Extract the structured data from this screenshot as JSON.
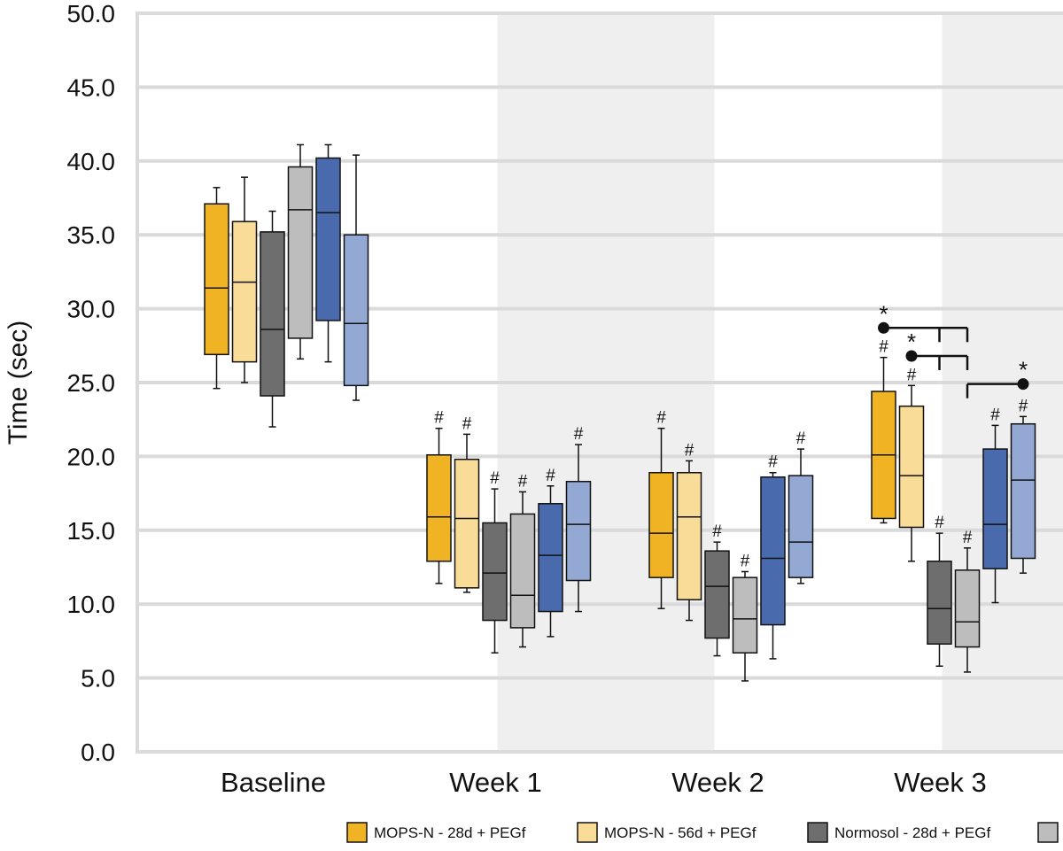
{
  "chart_data": {
    "type": "box",
    "ylabel": "Time (sec)",
    "ylim": [
      0,
      50
    ],
    "yticks": [
      "0.0",
      "5.0",
      "10.0",
      "15.0",
      "20.0",
      "25.0",
      "30.0",
      "35.0",
      "40.0",
      "45.0",
      "50.0"
    ],
    "grid": true,
    "legend_position": "bottom",
    "categories": [
      "Baseline",
      "Week 1",
      "Week 2",
      "Week 3"
    ],
    "shaded_categories": [
      "Week 1",
      "Week 3"
    ],
    "series": [
      {
        "name": "MOPS-N - 28d + PEGf",
        "color": "#F0B323",
        "boxes": [
          {
            "whisker_low": 24.6,
            "q1": 26.9,
            "median": 31.4,
            "q3": 37.1,
            "whisker_high": 38.2
          },
          {
            "whisker_low": 11.4,
            "q1": 12.9,
            "median": 15.9,
            "q3": 20.1,
            "whisker_high": 21.9,
            "mark": "#"
          },
          {
            "whisker_low": 9.7,
            "q1": 11.8,
            "median": 14.8,
            "q3": 18.9,
            "whisker_high": 21.9,
            "mark": "#"
          },
          {
            "whisker_low": 15.5,
            "q1": 15.8,
            "median": 20.1,
            "q3": 24.4,
            "whisker_high": 26.7,
            "mark": "#"
          }
        ]
      },
      {
        "name": "MOPS-N - 56d + PEGf",
        "color": "#F8DC98",
        "boxes": [
          {
            "whisker_low": 25.0,
            "q1": 26.4,
            "median": 31.8,
            "q3": 35.9,
            "whisker_high": 38.9
          },
          {
            "whisker_low": 10.8,
            "q1": 11.1,
            "median": 15.8,
            "q3": 19.8,
            "whisker_high": 21.5,
            "mark": "#"
          },
          {
            "whisker_low": 8.9,
            "q1": 10.3,
            "median": 15.9,
            "q3": 18.9,
            "whisker_high": 19.7,
            "mark": "#"
          },
          {
            "whisker_low": 12.9,
            "q1": 15.2,
            "median": 18.7,
            "q3": 23.4,
            "whisker_high": 24.8,
            "mark": "#"
          }
        ]
      },
      {
        "name": "Normosol - 28d + PEGf",
        "color": "#6E6E6E",
        "boxes": [
          {
            "whisker_low": 22.0,
            "q1": 24.1,
            "median": 28.6,
            "q3": 35.2,
            "whisker_high": 36.6
          },
          {
            "whisker_low": 6.7,
            "q1": 8.9,
            "median": 12.1,
            "q3": 15.5,
            "whisker_high": 17.8,
            "mark": "#"
          },
          {
            "whisker_low": 6.5,
            "q1": 7.7,
            "median": 11.2,
            "q3": 13.6,
            "whisker_high": 14.2,
            "mark": "#"
          },
          {
            "whisker_low": 5.8,
            "q1": 7.3,
            "median": 9.7,
            "q3": 12.9,
            "whisker_high": 14.8,
            "mark": "#"
          }
        ]
      },
      {
        "name": "",
        "color": "#BDBDBD",
        "boxes": [
          {
            "whisker_low": 26.6,
            "q1": 28.0,
            "median": 36.7,
            "q3": 39.6,
            "whisker_high": 41.1
          },
          {
            "whisker_low": 7.1,
            "q1": 8.4,
            "median": 10.6,
            "q3": 16.1,
            "whisker_high": 17.6,
            "mark": "#"
          },
          {
            "whisker_low": 4.8,
            "q1": 6.7,
            "median": 9.0,
            "q3": 11.8,
            "whisker_high": 12.2,
            "mark": "#"
          },
          {
            "whisker_low": 5.4,
            "q1": 7.1,
            "median": 8.8,
            "q3": 12.3,
            "whisker_high": 13.8,
            "mark": "#"
          }
        ]
      },
      {
        "name": "",
        "color": "#4A6AAE",
        "boxes": [
          {
            "whisker_low": 26.4,
            "q1": 29.2,
            "median": 36.5,
            "q3": 40.2,
            "whisker_high": 41.1
          },
          {
            "whisker_low": 7.8,
            "q1": 9.5,
            "median": 13.3,
            "q3": 16.8,
            "whisker_high": 18.0,
            "mark": "#"
          },
          {
            "whisker_low": 6.3,
            "q1": 8.6,
            "median": 13.1,
            "q3": 18.6,
            "whisker_high": 18.9,
            "mark": "#"
          },
          {
            "whisker_low": 10.1,
            "q1": 12.4,
            "median": 15.4,
            "q3": 20.5,
            "whisker_high": 22.1,
            "mark": "#"
          }
        ]
      },
      {
        "name": "",
        "color": "#93A8D2",
        "boxes": [
          {
            "whisker_low": 23.8,
            "q1": 24.8,
            "median": 29.0,
            "q3": 35.0,
            "whisker_high": 40.4
          },
          {
            "whisker_low": 9.5,
            "q1": 11.6,
            "median": 15.4,
            "q3": 18.3,
            "whisker_high": 20.8,
            "mark": "#"
          },
          {
            "whisker_low": 11.4,
            "q1": 11.8,
            "median": 14.2,
            "q3": 18.7,
            "whisker_high": 20.5,
            "mark": "#"
          },
          {
            "whisker_low": 12.1,
            "q1": 13.1,
            "median": 18.4,
            "q3": 22.2,
            "whisker_high": 22.7,
            "mark": "#"
          }
        ]
      }
    ],
    "annotations": {
      "hash_symbol": "#",
      "star_symbol": "*",
      "significance_brackets": [
        {
          "category": "Week 3",
          "from_series": 0,
          "to_series": [
            2,
            3
          ],
          "y": 28.7
        },
        {
          "category": "Week 3",
          "from_series": 1,
          "to_series": [
            2,
            3
          ],
          "y": 26.8
        },
        {
          "category": "Week 3",
          "from_series": 5,
          "to_series": [
            3
          ],
          "y": 24.9
        }
      ]
    }
  }
}
